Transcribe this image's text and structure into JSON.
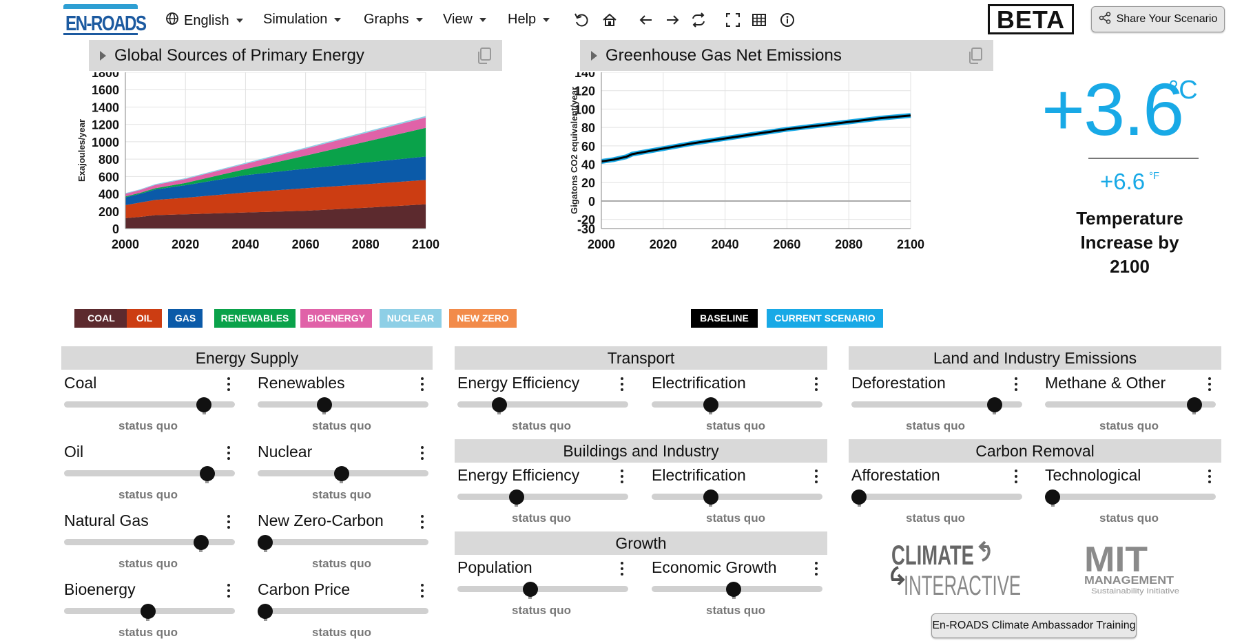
{
  "app": {
    "logo_text": "EN-ROADS",
    "beta_label": "BETA",
    "share_label": "Share Your Scenario"
  },
  "menu": {
    "language": "English",
    "items": [
      "Simulation",
      "Graphs",
      "View",
      "Help"
    ]
  },
  "toolbar_icons": [
    "undo-icon",
    "home-icon",
    "back-arrow-icon",
    "forward-arrow-icon",
    "swap-icon",
    "fullscreen-icon",
    "table-icon",
    "info-icon"
  ],
  "graph_left": {
    "title": "Global Sources of Primary Energy",
    "ylabel": "Exajoules/year",
    "legend": [
      {
        "label": "COAL",
        "color": "#5c2a2e"
      },
      {
        "label": "OIL",
        "color": "#cc3d12"
      },
      {
        "label": "GAS",
        "color": "#0b5aa8"
      },
      {
        "label": "RENEWABLES",
        "color": "#0aa24a"
      },
      {
        "label": "BIOENERGY",
        "color": "#e062a8"
      },
      {
        "label": "NUCLEAR",
        "color": "#8ecfe6"
      },
      {
        "label": "NEW ZERO",
        "color": "#f28b4a"
      }
    ]
  },
  "graph_right": {
    "title": "Greenhouse Gas Net Emissions",
    "ylabel": "Gigatons CO2 equivalent/year",
    "legend": [
      {
        "label": "BASELINE",
        "color": "#000000"
      },
      {
        "label": "CURRENT SCENARIO",
        "color": "#18a9e6"
      }
    ]
  },
  "chart_data": [
    {
      "type": "area",
      "title": "Global Sources of Primary Energy",
      "xlabel": "",
      "ylabel": "Exajoules/year",
      "xlim": [
        2000,
        2100
      ],
      "ylim": [
        0,
        1800
      ],
      "xticks": [
        2000,
        2020,
        2040,
        2060,
        2080,
        2100
      ],
      "yticks": [
        0,
        200,
        400,
        600,
        800,
        1000,
        1200,
        1400,
        1600,
        1800
      ],
      "stacked": true,
      "x": [
        2000,
        2005,
        2010,
        2020,
        2040,
        2060,
        2080,
        2100
      ],
      "series": [
        {
          "name": "COAL",
          "color": "#5c2a2e",
          "values": [
            120,
            135,
            155,
            165,
            185,
            205,
            240,
            280
          ]
        },
        {
          "name": "OIL",
          "color": "#cc3d12",
          "values": [
            150,
            165,
            175,
            190,
            230,
            260,
            270,
            280
          ]
        },
        {
          "name": "GAS",
          "color": "#0b5aa8",
          "values": [
            90,
            100,
            120,
            145,
            200,
            225,
            250,
            270
          ]
        },
        {
          "name": "RENEWABLES",
          "color": "#0aa24a",
          "values": [
            10,
            12,
            15,
            25,
            70,
            150,
            240,
            330
          ]
        },
        {
          "name": "BIOENERGY",
          "color": "#e062a8",
          "values": [
            30,
            33,
            38,
            45,
            60,
            80,
            100,
            120
          ]
        },
        {
          "name": "NUCLEAR",
          "color": "#8ecfe6",
          "values": [
            8,
            8,
            9,
            10,
            12,
            13,
            15,
            16
          ]
        },
        {
          "name": "NEW ZERO",
          "color": "#f28b4a",
          "values": [
            0,
            0,
            0,
            0,
            0,
            0,
            0,
            0
          ]
        }
      ]
    },
    {
      "type": "line",
      "title": "Greenhouse Gas Net Emissions",
      "xlabel": "",
      "ylabel": "Gigatons CO2 equivalent/year",
      "xlim": [
        2000,
        2100
      ],
      "ylim": [
        -30,
        140
      ],
      "xticks": [
        2000,
        2020,
        2040,
        2060,
        2080,
        2100
      ],
      "yticks": [
        140,
        120,
        100,
        80,
        60,
        40,
        20,
        0,
        -20,
        -30
      ],
      "x": [
        2000,
        2004,
        2008,
        2010,
        2015,
        2020,
        2030,
        2040,
        2050,
        2060,
        2070,
        2080,
        2090,
        2100
      ],
      "series": [
        {
          "name": "BASELINE",
          "color": "#000000",
          "values": [
            43,
            45,
            48,
            51,
            54,
            57,
            63,
            68,
            73,
            78,
            82,
            86,
            90,
            93
          ]
        },
        {
          "name": "CURRENT SCENARIO",
          "color": "#18a9e6",
          "values": [
            43,
            45,
            48,
            51,
            54,
            57,
            63,
            68,
            73,
            78,
            82,
            86,
            90,
            93
          ]
        }
      ]
    }
  ],
  "temperature": {
    "celsius": "+3.6",
    "celsius_unit": "°C",
    "fahrenheit": "+6.6",
    "fahrenheit_unit": "°F",
    "label_line1": "Temperature",
    "label_line2": "Increase by",
    "label_line3": "2100"
  },
  "sections": {
    "energy_supply": "Energy Supply",
    "transport": "Transport",
    "buildings": "Buildings and Industry",
    "growth": "Growth",
    "land": "Land and Industry Emissions",
    "carbon_removal": "Carbon Removal"
  },
  "sliders": {
    "coal": {
      "label": "Coal",
      "status": "status quo",
      "value": 0.85
    },
    "renewables": {
      "label": "Renewables",
      "status": "status quo",
      "value": 0.38
    },
    "oil": {
      "label": "Oil",
      "status": "status quo",
      "value": 0.87
    },
    "nuclear": {
      "label": "Nuclear",
      "status": "status quo",
      "value": 0.49
    },
    "natural_gas": {
      "label": "Natural Gas",
      "status": "status quo",
      "value": 0.83
    },
    "new_zero_carbon": {
      "label": "New Zero-Carbon",
      "status": "status quo",
      "value": 0.0
    },
    "bioenergy": {
      "label": "Bioenergy",
      "status": "status quo",
      "value": 0.49
    },
    "carbon_price": {
      "label": "Carbon Price",
      "status": "status quo",
      "value": 0.0
    },
    "transport_efficiency": {
      "label": "Energy Efficiency",
      "status": "status quo",
      "value": 0.22
    },
    "transport_electrification": {
      "label": "Electrification",
      "status": "status quo",
      "value": 0.33
    },
    "buildings_efficiency": {
      "label": "Energy Efficiency",
      "status": "status quo",
      "value": 0.33
    },
    "buildings_electrification": {
      "label": "Electrification",
      "status": "status quo",
      "value": 0.33
    },
    "population": {
      "label": "Population",
      "status": "status quo",
      "value": 0.42
    },
    "economic_growth": {
      "label": "Economic Growth",
      "status": "status quo",
      "value": 0.48
    },
    "deforestation": {
      "label": "Deforestation",
      "status": "status quo",
      "value": 0.87
    },
    "methane_other": {
      "label": "Methane & Other",
      "status": "status quo",
      "value": 0.91
    },
    "afforestation": {
      "label": "Afforestation",
      "status": "status quo",
      "value": 0.0
    },
    "technological": {
      "label": "Technological",
      "status": "status quo",
      "value": 0.0
    }
  },
  "footer": {
    "ci_logo_line1": "CLIMATE",
    "ci_logo_line2": "INTERACTIVE",
    "mit_logo_line1": "MIT",
    "mit_logo_line2": "MANAGEMENT",
    "mit_logo_line3": "Sustainability Initiative",
    "ambassador_button": "En-ROADS Climate Ambassador Training"
  }
}
